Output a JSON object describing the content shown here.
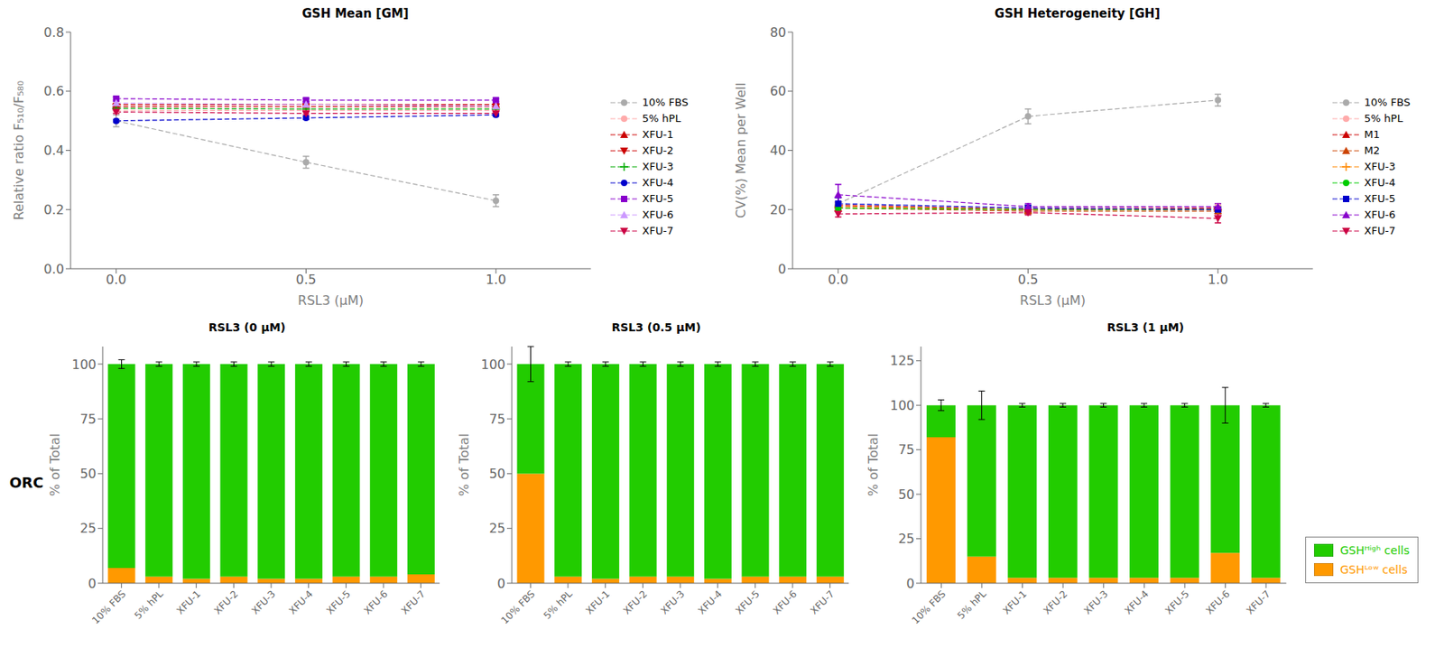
{
  "chart_data": [
    {
      "type": "line",
      "title": "GSH Mean [GM]",
      "xlabel": "RSL3 (μM)",
      "ylabel": "Relative ratio F₅₁₀/F₅₈₀",
      "x": [
        0,
        0.5,
        1
      ],
      "xlim": [
        -0.12,
        1.25
      ],
      "xticks": [
        {
          "value": 0,
          "label": "0.0"
        },
        0.5,
        {
          "value": 1,
          "label": "1.0"
        }
      ],
      "ylim": [
        0,
        0.8
      ],
      "yticks": [
        {
          "value": 0,
          "label": "0.0"
        },
        0.2,
        0.4,
        0.6,
        0.8
      ],
      "grid": false,
      "legend": "right",
      "series": [
        {
          "name": "10% FBS",
          "color": "#aaaaaa",
          "marker": "circle",
          "line_style": "dashed",
          "values": [
            0.5,
            0.36,
            0.23
          ],
          "yerr": [
            0.02,
            0.02,
            0.02
          ]
        },
        {
          "name": "5% hPL",
          "color": "#ffaaaa",
          "marker": "circle",
          "line_style": "dashed",
          "values": [
            0.535,
            0.535,
            0.535
          ],
          "yerr": [
            0.01,
            0.01,
            0.01
          ]
        },
        {
          "name": "XFU-1",
          "color": "#cc0000",
          "marker": "triangle-up",
          "line_style": "dashed",
          "values": [
            0.555,
            0.555,
            0.555
          ],
          "yerr": [
            0.005,
            0.005,
            0.005
          ]
        },
        {
          "name": "XFU-2",
          "color": "#cc0000",
          "marker": "triangle-down",
          "line_style": "dashed",
          "values": [
            0.548,
            0.548,
            0.548
          ],
          "yerr": [
            0.005,
            0.005,
            0.005
          ]
        },
        {
          "name": "XFU-3",
          "color": "#00aa00",
          "marker": "plus",
          "line_style": "dashed",
          "values": [
            0.542,
            0.54,
            0.54
          ],
          "yerr": [
            0.005,
            0.005,
            0.005
          ]
        },
        {
          "name": "XFU-4",
          "color": "#0000cc",
          "marker": "circle",
          "line_style": "dashed",
          "values": [
            0.5,
            0.51,
            0.52
          ],
          "yerr": [
            0.005,
            0.005,
            0.005
          ]
        },
        {
          "name": "XFU-5",
          "color": "#8800cc",
          "marker": "square",
          "line_style": "dashed",
          "values": [
            0.575,
            0.57,
            0.57
          ],
          "yerr": [
            0.005,
            0.005,
            0.005
          ]
        },
        {
          "name": "XFU-6",
          "color": "#cc99ff",
          "marker": "triangle-up",
          "line_style": "dashed",
          "values": [
            0.56,
            0.555,
            0.55
          ],
          "yerr": [
            0.005,
            0.005,
            0.005
          ]
        },
        {
          "name": "XFU-7",
          "color": "#cc0044",
          "marker": "triangle-down",
          "line_style": "dashed",
          "values": [
            0.53,
            0.525,
            0.525
          ],
          "yerr": [
            0.005,
            0.005,
            0.005
          ]
        }
      ]
    },
    {
      "type": "line",
      "title": "GSH Heterogeneity [GH]",
      "xlabel": "RSL3 (μM)",
      "ylabel": "CV(%) Mean per Well",
      "x": [
        0,
        0.5,
        1
      ],
      "xlim": [
        -0.12,
        1.25
      ],
      "xticks": [
        {
          "value": 0,
          "label": "0.0"
        },
        0.5,
        {
          "value": 1,
          "label": "1.0"
        }
      ],
      "ylim": [
        0,
        80
      ],
      "yticks": [
        0,
        20,
        40,
        60,
        80
      ],
      "grid": false,
      "legend": "right",
      "series": [
        {
          "name": "10% FBS",
          "color": "#aaaaaa",
          "marker": "circle",
          "line_style": "dashed",
          "values": [
            22.0,
            51.5,
            57.0
          ],
          "yerr": [
            2.0,
            2.5,
            2.0
          ]
        },
        {
          "name": "5% hPL",
          "color": "#ffaaaa",
          "marker": "circle",
          "line_style": "dashed",
          "values": [
            21.0,
            20.5,
            21.0
          ],
          "yerr": [
            1.5,
            1.0,
            1.0
          ]
        },
        {
          "name": "M1",
          "color": "#cc0000",
          "marker": "triangle-up",
          "line_style": "dashed",
          "values": [
            21.5,
            20.0,
            20.5
          ],
          "yerr": [
            1.0,
            0.8,
            0.8
          ]
        },
        {
          "name": "M2",
          "color": "#cc4400",
          "marker": "triangle-up",
          "line_style": "dashed",
          "values": [
            20.5,
            19.5,
            19.5
          ],
          "yerr": [
            1.0,
            0.8,
            0.8
          ]
        },
        {
          "name": "XFU-3",
          "color": "#ff8800",
          "marker": "plus",
          "line_style": "dashed",
          "values": [
            21.0,
            20.0,
            20.0
          ],
          "yerr": [
            1.0,
            0.8,
            0.8
          ]
        },
        {
          "name": "XFU-4",
          "color": "#00cc00",
          "marker": "circle",
          "line_style": "dashed",
          "values": [
            20.5,
            20.0,
            20.0
          ],
          "yerr": [
            1.0,
            0.8,
            0.8
          ]
        },
        {
          "name": "XFU-5",
          "color": "#0000cc",
          "marker": "square",
          "line_style": "dashed",
          "values": [
            22.0,
            20.5,
            20.0
          ],
          "yerr": [
            2.0,
            1.0,
            0.8
          ]
        },
        {
          "name": "XFU-6",
          "color": "#8800cc",
          "marker": "triangle-up",
          "line_style": "dashed",
          "values": [
            25.0,
            21.0,
            21.0
          ],
          "yerr": [
            3.5,
            1.0,
            1.0
          ]
        },
        {
          "name": "XFU-7",
          "color": "#cc0044",
          "marker": "triangle-down",
          "line_style": "dashed",
          "values": [
            18.5,
            19.0,
            17.0
          ],
          "yerr": [
            1.0,
            0.8,
            1.5
          ]
        }
      ]
    },
    {
      "type": "bar",
      "stacked": true,
      "title": "RSL3 (0 μM)",
      "ylabel": "% of Total",
      "annotation": "ORC",
      "categories": [
        "10% FBS",
        "5% hPL",
        "XFU-1",
        "XFU-2",
        "XFU-3",
        "XFU-4",
        "XFU-5",
        "XFU-6",
        "XFU-7"
      ],
      "ylim": [
        0,
        108
      ],
      "yticks": [
        0,
        25,
        50,
        75,
        100
      ],
      "grid": false,
      "series": [
        {
          "name": "GSHᴸᵒʷ cells",
          "color": "#ff9900",
          "values": [
            7,
            3,
            2,
            3,
            2,
            2,
            3,
            3,
            4
          ]
        },
        {
          "name": "GSHᴴⁱᵍʰ cells",
          "color": "#22cc00",
          "values": [
            93,
            97,
            98,
            97,
            98,
            98,
            97,
            97,
            96
          ],
          "yerr": [
            2,
            1,
            1,
            1,
            1,
            1,
            1,
            1,
            1
          ]
        }
      ]
    },
    {
      "type": "bar",
      "stacked": true,
      "title": "RSL3 (0.5 μM)",
      "ylabel": "% of Total",
      "categories": [
        "10% FBS",
        "5% hPL",
        "XFU-1",
        "XFU-2",
        "XFU-3",
        "XFU-4",
        "XFU-5",
        "XFU-6",
        "XFU-7"
      ],
      "ylim": [
        0,
        108
      ],
      "yticks": [
        0,
        25,
        50,
        75,
        100
      ],
      "grid": false,
      "series": [
        {
          "name": "GSHᴸᵒʷ cells",
          "color": "#ff9900",
          "values": [
            50,
            3,
            2,
            3,
            3,
            2,
            3,
            3,
            3
          ]
        },
        {
          "name": "GSHᴴⁱᵍʰ cells",
          "color": "#22cc00",
          "values": [
            50,
            97,
            98,
            97,
            97,
            98,
            97,
            97,
            97
          ],
          "yerr": [
            8,
            1,
            1,
            1,
            1,
            1,
            1,
            1,
            1
          ]
        }
      ]
    },
    {
      "type": "bar",
      "stacked": true,
      "title": "RSL3 (1 μM)",
      "ylabel": "% of Total",
      "categories": [
        "10% FBS",
        "5% hPL",
        "XFU-1",
        "XFU-2",
        "XFU-3",
        "XFU-4",
        "XFU-5",
        "XFU-6",
        "XFU-7"
      ],
      "ylim": [
        0,
        133
      ],
      "yticks": [
        0,
        25,
        50,
        75,
        100,
        125
      ],
      "grid": false,
      "legend": "lower right",
      "series": [
        {
          "name": "GSHᴸᵒʷ cells",
          "color": "#ff9900",
          "values": [
            82,
            15,
            3,
            3,
            3,
            3,
            3,
            17,
            3
          ]
        },
        {
          "name": "GSHᴴⁱᵍʰ cells",
          "color": "#22cc00",
          "values": [
            18,
            85,
            97,
            97,
            97,
            97,
            97,
            83,
            97
          ],
          "yerr": [
            3,
            8,
            1,
            1,
            1,
            1,
            1,
            10,
            1
          ]
        }
      ]
    }
  ]
}
